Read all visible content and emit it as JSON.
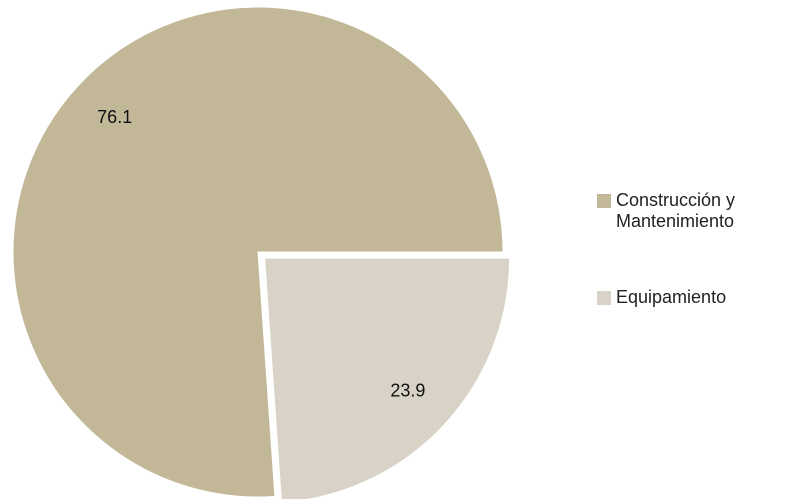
{
  "chart_data": {
    "type": "pie",
    "categories": [
      "Construcción y Mantenimiento",
      "Equipamiento"
    ],
    "values": [
      76.1,
      23.9
    ],
    "colors": [
      "#c2b898",
      "#d8d3c6"
    ],
    "legend": "right"
  }
}
